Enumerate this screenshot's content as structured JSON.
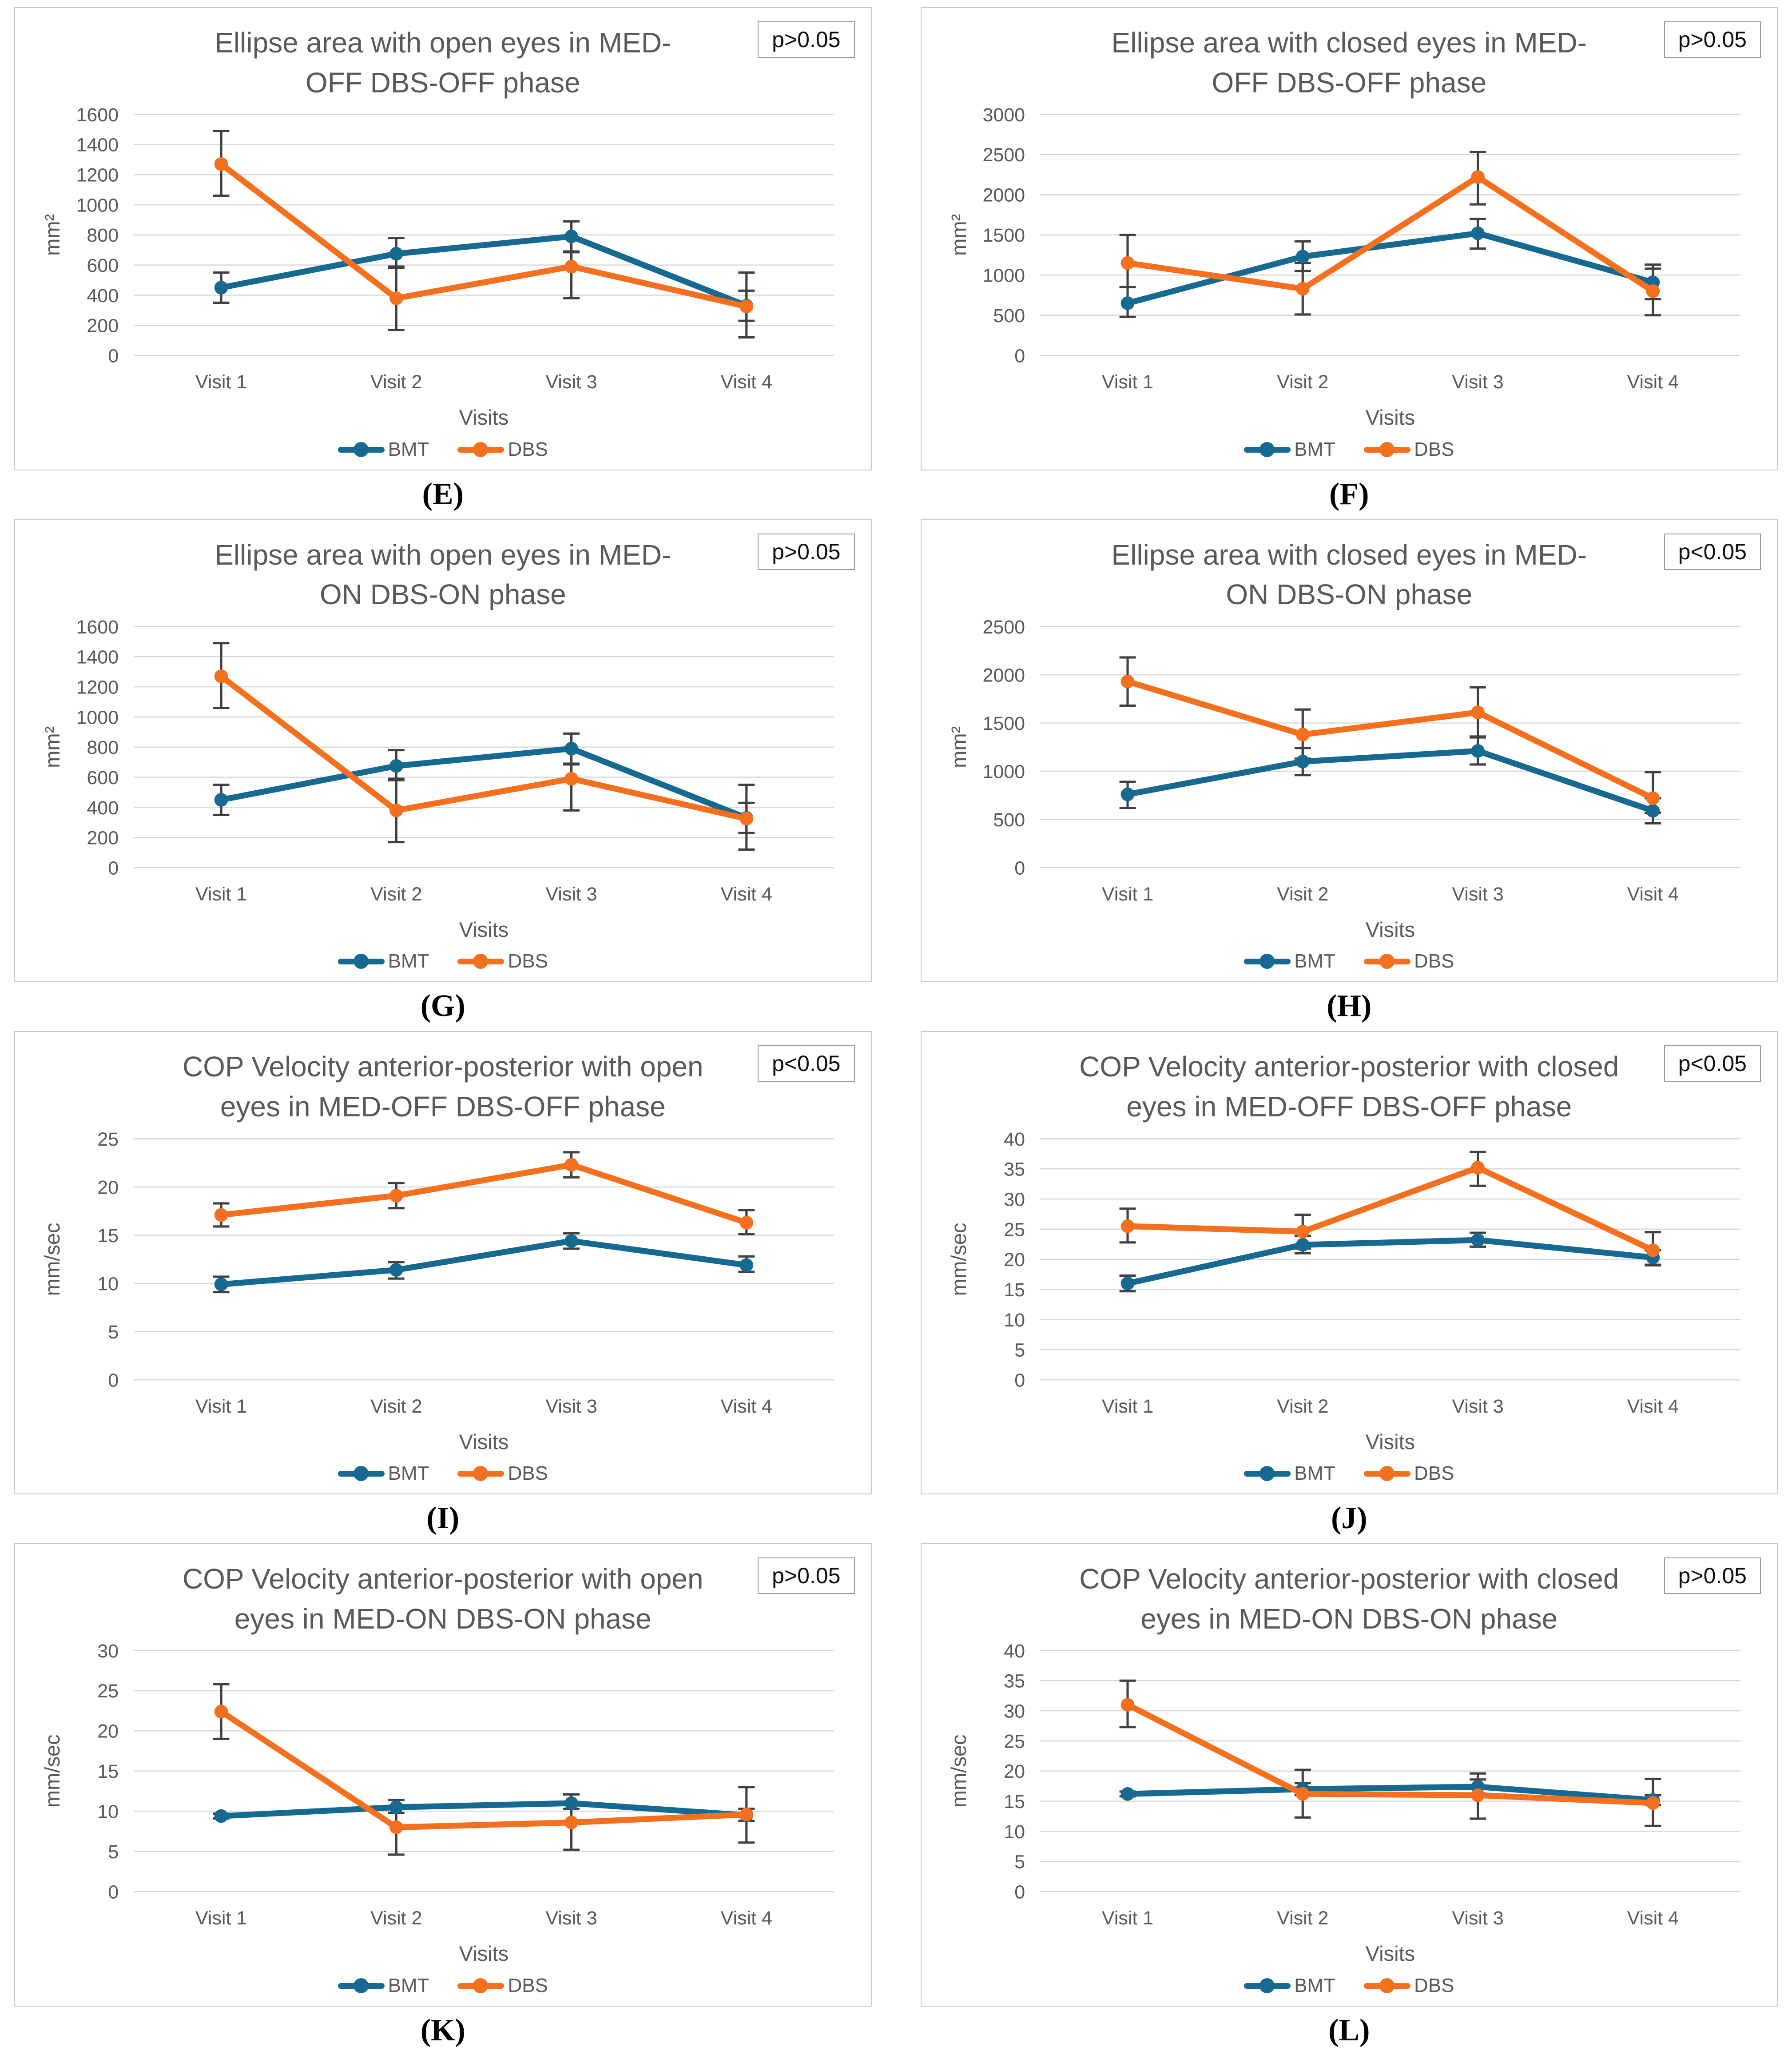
{
  "style": {
    "bmt_color": "#166990",
    "dbs_color": "#F4701E",
    "grid_color": "#d8d8d8",
    "error_bar_color": "#404040",
    "text_color": "#595959",
    "title_color": "#595959",
    "panel_border_color": "#c9c9c9"
  },
  "chart_data": [
    {
      "id": "E",
      "panel_label": "(E)",
      "type": "line",
      "title": "Ellipse area with open eyes in MED-OFF DBS-OFF phase",
      "title_lines": [
        "Ellipse area with open eyes in MED-",
        "OFF DBS-OFF phase"
      ],
      "p_value": "p>0.05",
      "xlabel": "Visits",
      "ylabel": "mm²",
      "ylim": [
        0,
        1600
      ],
      "ystep": 200,
      "y_ticks": [
        0,
        200,
        400,
        600,
        800,
        1000,
        1200,
        1400,
        1600
      ],
      "categories": [
        "Visit 1",
        "Visit 2",
        "Visit 3",
        "Visit 4"
      ],
      "grid": true,
      "legend_position": "bottom",
      "series": [
        {
          "name": "BMT",
          "color": "#166990",
          "values": [
            450,
            675,
            790,
            330
          ],
          "err_lo": [
            100,
            95,
            105,
            100
          ],
          "err_hi": [
            100,
            105,
            100,
            100
          ]
        },
        {
          "name": "DBS",
          "color": "#F4701E",
          "values": [
            1270,
            380,
            590,
            325
          ],
          "err_lo": [
            210,
            210,
            210,
            205
          ],
          "err_hi": [
            220,
            210,
            100,
            225
          ]
        }
      ]
    },
    {
      "id": "F",
      "panel_label": "(F)",
      "type": "line",
      "title": "Ellipse area with closed eyes in MED-OFF DBS-OFF phase",
      "title_lines": [
        "Ellipse area with closed eyes in MED-",
        "OFF DBS-OFF phase"
      ],
      "p_value": "p>0.05",
      "xlabel": "Visits",
      "ylabel": "mm²",
      "ylim": [
        0,
        3000
      ],
      "ystep": 500,
      "y_ticks": [
        0,
        500,
        1000,
        1500,
        2000,
        2500,
        3000
      ],
      "categories": [
        "Visit 1",
        "Visit 2",
        "Visit 3",
        "Visit 4"
      ],
      "grid": true,
      "legend_position": "bottom",
      "series": [
        {
          "name": "BMT",
          "color": "#166990",
          "values": [
            650,
            1230,
            1520,
            910
          ],
          "err_lo": [
            170,
            180,
            190,
            210
          ],
          "err_hi": [
            200,
            190,
            180,
            220
          ]
        },
        {
          "name": "DBS",
          "color": "#F4701E",
          "values": [
            1150,
            830,
            2220,
            800
          ],
          "err_lo": [
            300,
            320,
            340,
            300
          ],
          "err_hi": [
            350,
            320,
            310,
            280
          ]
        }
      ]
    },
    {
      "id": "G",
      "panel_label": "(G)",
      "type": "line",
      "title": "Ellipse area with open eyes in MED-ON DBS-ON phase",
      "title_lines": [
        "Ellipse area with open eyes in MED-",
        "ON DBS-ON phase"
      ],
      "p_value": "p>0.05",
      "xlabel": "Visits",
      "ylabel": "mm²",
      "ylim": [
        0,
        1600
      ],
      "ystep": 200,
      "y_ticks": [
        0,
        200,
        400,
        600,
        800,
        1000,
        1200,
        1400,
        1600
      ],
      "categories": [
        "Visit 1",
        "Visit 2",
        "Visit 3",
        "Visit 4"
      ],
      "grid": true,
      "legend_position": "bottom",
      "series": [
        {
          "name": "BMT",
          "color": "#166990",
          "values": [
            450,
            675,
            790,
            330
          ],
          "err_lo": [
            100,
            95,
            105,
            100
          ],
          "err_hi": [
            100,
            105,
            100,
            100
          ]
        },
        {
          "name": "DBS",
          "color": "#F4701E",
          "values": [
            1270,
            380,
            590,
            325
          ],
          "err_lo": [
            210,
            210,
            210,
            205
          ],
          "err_hi": [
            220,
            210,
            100,
            225
          ]
        }
      ]
    },
    {
      "id": "H",
      "panel_label": "(H)",
      "type": "line",
      "title": "Ellipse area with closed eyes in MED-ON DBS-ON phase",
      "title_lines": [
        "Ellipse area with closed eyes in MED-",
        "ON DBS-ON phase"
      ],
      "p_value": "p<0.05",
      "xlabel": "Visits",
      "ylabel": "mm²",
      "ylim": [
        0,
        2500
      ],
      "ystep": 500,
      "y_ticks": [
        0,
        500,
        1000,
        1500,
        2000,
        2500
      ],
      "categories": [
        "Visit 1",
        "Visit 2",
        "Visit 3",
        "Visit 4"
      ],
      "grid": true,
      "legend_position": "bottom",
      "series": [
        {
          "name": "BMT",
          "color": "#166990",
          "values": [
            760,
            1100,
            1210,
            590
          ],
          "err_lo": [
            140,
            140,
            140,
            130
          ],
          "err_hi": [
            130,
            140,
            150,
            130
          ]
        },
        {
          "name": "DBS",
          "color": "#F4701E",
          "values": [
            1930,
            1380,
            1610,
            720
          ],
          "err_lo": [
            250,
            250,
            260,
            150
          ],
          "err_hi": [
            250,
            260,
            260,
            270
          ]
        }
      ]
    },
    {
      "id": "I",
      "panel_label": "(I)",
      "type": "line",
      "title": "COP Velocity anterior-posterior with open eyes in MED-OFF DBS-OFF phase",
      "title_lines": [
        "COP Velocity anterior-posterior with open",
        "eyes in MED-OFF DBS-OFF phase"
      ],
      "p_value": "p<0.05",
      "xlabel": "Visits",
      "ylabel": "mm/sec",
      "ylim": [
        0,
        25
      ],
      "ystep": 5,
      "y_ticks": [
        0,
        5,
        10,
        15,
        20,
        25
      ],
      "categories": [
        "Visit 1",
        "Visit 2",
        "Visit 3",
        "Visit 4"
      ],
      "grid": true,
      "legend_position": "bottom",
      "series": [
        {
          "name": "BMT",
          "color": "#166990",
          "values": [
            9.9,
            11.4,
            14.4,
            11.9
          ],
          "err_lo": [
            0.8,
            0.9,
            0.8,
            0.7
          ],
          "err_hi": [
            0.8,
            0.8,
            0.8,
            0.9
          ]
        },
        {
          "name": "DBS",
          "color": "#F4701E",
          "values": [
            17.1,
            19.1,
            22.3,
            16.3
          ],
          "err_lo": [
            1.2,
            1.3,
            1.3,
            1.2
          ],
          "err_hi": [
            1.2,
            1.3,
            1.3,
            1.3
          ]
        }
      ]
    },
    {
      "id": "J",
      "panel_label": "(J)",
      "type": "line",
      "title": "COP Velocity anterior-posterior with closed eyes in MED-OFF DBS-OFF phase",
      "title_lines": [
        "COP Velocity anterior-posterior with closed",
        "eyes in MED-OFF DBS-OFF phase"
      ],
      "p_value": "p<0.05",
      "xlabel": "Visits",
      "ylabel": "mm/sec",
      "ylim": [
        0,
        40
      ],
      "ystep": 5,
      "y_ticks": [
        0,
        5,
        10,
        15,
        20,
        25,
        30,
        35,
        40
      ],
      "categories": [
        "Visit 1",
        "Visit 2",
        "Visit 3",
        "Visit 4"
      ],
      "grid": true,
      "legend_position": "bottom",
      "series": [
        {
          "name": "BMT",
          "color": "#166990",
          "values": [
            16,
            22.4,
            23.2,
            20.3
          ],
          "err_lo": [
            1.3,
            1.4,
            1.1,
            1.2
          ],
          "err_hi": [
            1.3,
            1.5,
            1.2,
            1.2
          ]
        },
        {
          "name": "DBS",
          "color": "#F4701E",
          "values": [
            25.5,
            24.6,
            35.2,
            21.5
          ],
          "err_lo": [
            2.7,
            2.8,
            3.0,
            2.5
          ],
          "err_hi": [
            2.9,
            2.8,
            2.6,
            3.0
          ]
        }
      ]
    },
    {
      "id": "K",
      "panel_label": "(K)",
      "type": "line",
      "title": "COP Velocity anterior-posterior with open eyes in MED-ON DBS-ON phase",
      "title_lines": [
        "COP Velocity anterior-posterior with open",
        "eyes in MED-ON DBS-ON phase"
      ],
      "p_value": "p>0.05",
      "xlabel": "Visits",
      "ylabel": "mm/sec",
      "ylim": [
        0,
        30
      ],
      "ystep": 5,
      "y_ticks": [
        0,
        5,
        10,
        15,
        20,
        25,
        30
      ],
      "categories": [
        "Visit 1",
        "Visit 2",
        "Visit 3",
        "Visit 4"
      ],
      "grid": true,
      "legend_position": "bottom",
      "series": [
        {
          "name": "BMT",
          "color": "#166990",
          "values": [
            9.4,
            10.5,
            11.0,
            9.5
          ],
          "err_lo": [
            0.3,
            0.7,
            0.7,
            0.7
          ],
          "err_hi": [
            0.3,
            0.9,
            1.1,
            0.8
          ]
        },
        {
          "name": "DBS",
          "color": "#F4701E",
          "values": [
            22.4,
            8.0,
            8.6,
            9.6
          ],
          "err_lo": [
            3.4,
            3.4,
            3.4,
            3.5
          ],
          "err_hi": [
            3.4,
            3.4,
            3.5,
            3.4
          ]
        }
      ]
    },
    {
      "id": "L",
      "panel_label": "(L)",
      "type": "line",
      "title": "COP Velocity anterior-posterior with closed eyes in MED-ON DBS-ON phase",
      "title_lines": [
        "COP Velocity anterior-posterior with closed",
        "eyes in MED-ON DBS-ON phase"
      ],
      "p_value": "p>0.05",
      "xlabel": "Visits",
      "ylabel": "mm/sec",
      "ylim": [
        0,
        40
      ],
      "ystep": 5,
      "y_ticks": [
        0,
        5,
        10,
        15,
        20,
        25,
        30,
        35,
        40
      ],
      "categories": [
        "Visit 1",
        "Visit 2",
        "Visit 3",
        "Visit 4"
      ],
      "grid": true,
      "legend_position": "bottom",
      "series": [
        {
          "name": "BMT",
          "color": "#166990",
          "values": [
            16.2,
            17.0,
            17.4,
            15.2
          ],
          "err_lo": [
            0.4,
            1.0,
            1.1,
            0.8
          ],
          "err_hi": [
            0.4,
            1.0,
            1.2,
            0.8
          ]
        },
        {
          "name": "DBS",
          "color": "#F4701E",
          "values": [
            31.0,
            16.2,
            16.0,
            14.7
          ],
          "err_lo": [
            3.7,
            3.9,
            3.9,
            3.8
          ],
          "err_hi": [
            4.0,
            4.0,
            3.6,
            4.0
          ]
        }
      ]
    }
  ]
}
